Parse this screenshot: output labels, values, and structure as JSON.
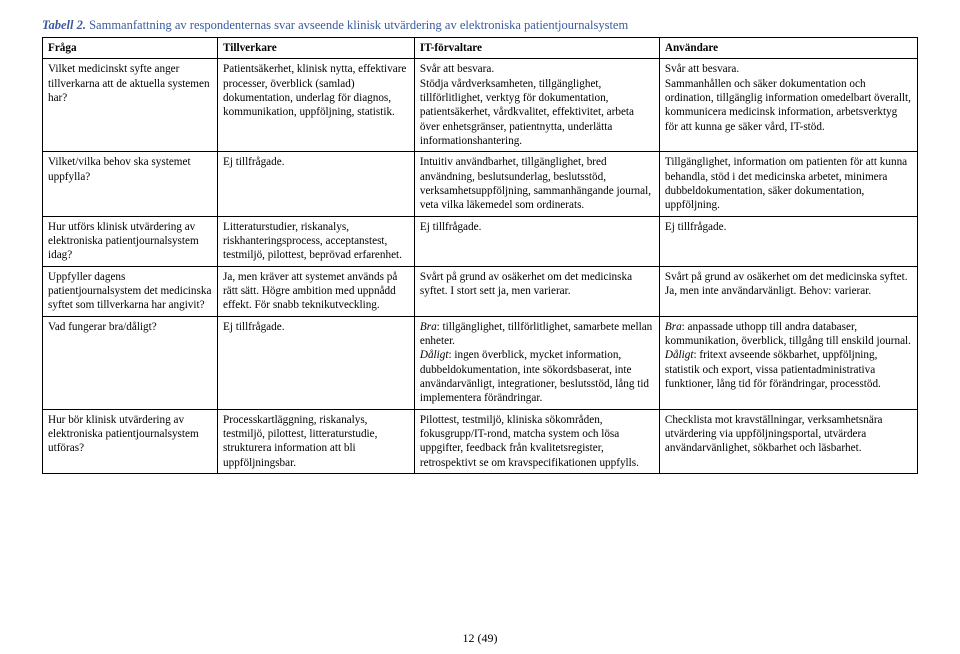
{
  "caption": {
    "lead": "Tabell 2.",
    "rest": " Sammanfattning av respondenternas svar avseende klinisk utvärdering av elektroniska patientjournalsystem"
  },
  "headers": [
    "Fråga",
    "Tillverkare",
    "IT-förvaltare",
    "Användare"
  ],
  "rows": [
    {
      "q": "Vilket medicinskt syfte anger tillverkarna att de aktuella systemen har?",
      "c1": "Patientsäkerhet, klinisk nytta, effektivare processer, överblick (samlad) dokumentation, underlag för diagnos, kommunikation, uppföljning, statistik.",
      "c2": "Svår att besvara.\nStödja vårdverksamheten, tillgänglighet, tillförlitlighet, verktyg för dokumentation, patientsäkerhet, vårdkvalitet, effektivitet, arbeta över enhetsgränser, patientnytta, underlätta informationshantering.",
      "c3": "Svår att besvara.\nSammanhållen och säker dokumentation och ordination, tillgänglig information omedelbart överallt, kommunicera medicinsk information, arbetsverktyg för att kunna ge säker vård, IT-stöd."
    },
    {
      "q": "Vilket/vilka behov ska systemet uppfylla?",
      "c1": "Ej tillfrågade.",
      "c2": "Intuitiv användbarhet, tillgänglighet, bred användning, beslutsunderlag, beslutsstöd, verksamhetsuppföljning, sammanhängande journal, veta vilka läkemedel som ordinerats.",
      "c3": "Tillgänglighet, information om patienten för att kunna behandla, stöd i det medicinska arbetet, minimera dubbeldokumentation, säker dokumentation, uppföljning."
    },
    {
      "q": "Hur utförs klinisk utvärdering av elektroniska patientjournalsystem idag?",
      "c1": "Litteraturstudier, riskanalys, riskhanteringsprocess, acceptanstest, testmiljö, pilottest, beprövad erfarenhet.",
      "c2": "Ej tillfrågade.",
      "c3": "Ej tillfrågade."
    },
    {
      "q": "Uppfyller dagens patientjournalsystem det medicinska syftet som tillverkarna har angivit?",
      "c1": "Ja, men kräver att systemet används på rätt sätt. Högre ambition med uppnådd effekt. För snabb teknikutveckling.",
      "c2": "Svårt på grund av osäkerhet om det medicinska syftet. I stort sett ja, men varierar.",
      "c3": "Svårt på grund av osäkerhet om det medicinska syftet. Ja, men inte användarvänligt. Behov: varierar."
    },
    {
      "q": "Vad fungerar bra/dåligt?",
      "c1": "Ej tillfrågade.",
      "c2": "",
      "c3": ""
    },
    {
      "q": "Hur bör klinisk utvärdering av elektroniska patientjournalsystem utföras?",
      "c1": "Processkartläggning, riskanalys, testmiljö, pilottest, litteraturstudie, strukturera information att bli uppföljningsbar.",
      "c2": "Pilottest, testmiljö, kliniska sökområden, fokusgrupp/IT-rond, matcha system och lösa uppgifter, feedback från kvalitetsregister, retrospektivt se om kravspecifikationen uppfylls.",
      "c3": "Checklista mot kravställningar, verksamhetsnära utvärdering via uppföljningsportal, utvärdera användarvänlighet, sökbarhet och läsbarhet."
    }
  ],
  "row4_special": {
    "c2": {
      "bra_lead": "Bra",
      "bra_rest": ": tillgänglighet, tillförlitlighet, samarbete mellan enheter.",
      "dal_lead": "Dåligt",
      "dal_rest": ": ingen överblick, mycket information, dubbeldokumentation, inte sökordsbaserat, inte användarvänligt, integrationer, beslutsstöd, lång tid implementera förändringar."
    },
    "c3": {
      "bra_lead": "Bra",
      "bra_rest": ": anpassade uthopp till andra databaser, kommunikation, överblick, tillgång till enskild journal.",
      "dal_lead": "Dåligt",
      "dal_rest": ": fritext avseende sökbarhet, uppföljning, statistik och export, vissa patientadministrativa funktioner, lång tid för förändringar, processtöd."
    }
  },
  "pagenum": "12 (49)"
}
